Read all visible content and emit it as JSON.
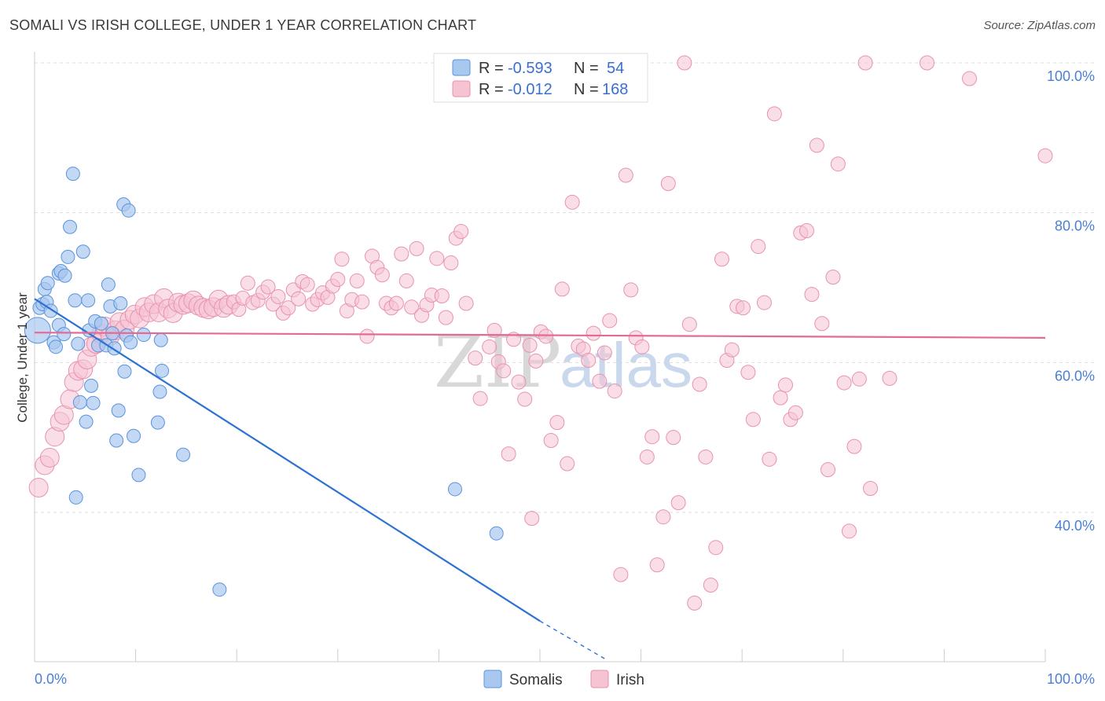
{
  "title": "SOMALI VS IRISH COLLEGE, UNDER 1 YEAR CORRELATION CHART",
  "source": "Source: ZipAtlas.com",
  "watermark": {
    "zip": "ZIP",
    "atlas": "atlas"
  },
  "colors": {
    "somali_fill": "#a9c8f0",
    "somali_stroke": "#5b93db",
    "somali_line": "#2d72d2",
    "irish_fill": "#f6c3d3",
    "irish_stroke": "#e892ae",
    "irish_line": "#e26a95",
    "grid": "#dddddd",
    "tick_text": "#4a7fd4"
  },
  "legend": {
    "rows": [
      {
        "r_label": "R = ",
        "r_value": "-0.593",
        "n_label": "N = ",
        "n_value": "54"
      },
      {
        "r_label": "R = ",
        "r_value": "-0.012",
        "n_label": "N = ",
        "n_value": "168"
      }
    ]
  },
  "bottom_legend": {
    "somali": "Somalis",
    "irish": "Irish"
  },
  "chart_data": {
    "type": "scatter",
    "title": "SOMALI VS IRISH COLLEGE, UNDER 1 YEAR CORRELATION CHART",
    "xlabel": "",
    "ylabel": "College, Under 1 year",
    "xlim": [
      0,
      100
    ],
    "ylim": [
      20,
      102
    ],
    "x_tick_labels": [
      {
        "value": 0,
        "label": "0.0%"
      },
      {
        "value": 100,
        "label": "100.0%"
      }
    ],
    "y_tick_labels": [
      {
        "value": 100,
        "label": "100.0%"
      },
      {
        "value": 80,
        "label": "80.0%"
      },
      {
        "value": 60,
        "label": "60.0%"
      },
      {
        "value": 40,
        "label": "40.0%"
      }
    ],
    "x_minor_ticks": [
      10,
      20,
      30,
      40,
      50,
      60,
      70,
      80,
      90,
      100
    ],
    "series": [
      {
        "name": "Somalis",
        "trend": {
          "x0": 0,
          "y0": 68.5,
          "x1": 50,
          "y1": 25.5,
          "dash_to_x": 56.5,
          "dash_to_y": 20.4
        },
        "points": [
          [
            0.3,
            64.3
          ],
          [
            0.5,
            67.3
          ],
          [
            0.8,
            67.8
          ],
          [
            1.0,
            69.8
          ],
          [
            1.2,
            68.1
          ],
          [
            1.3,
            70.6
          ],
          [
            1.6,
            66.9
          ],
          [
            1.9,
            62.7
          ],
          [
            2.1,
            62.1
          ],
          [
            2.4,
            65.0
          ],
          [
            2.4,
            71.9
          ],
          [
            2.6,
            72.2
          ],
          [
            2.9,
            63.8
          ],
          [
            3.0,
            71.6
          ],
          [
            3.3,
            74.1
          ],
          [
            3.5,
            78.1
          ],
          [
            3.8,
            85.2
          ],
          [
            4.0,
            68.3
          ],
          [
            4.1,
            42.0
          ],
          [
            4.3,
            62.5
          ],
          [
            4.5,
            54.7
          ],
          [
            4.8,
            74.8
          ],
          [
            5.1,
            52.1
          ],
          [
            5.3,
            68.3
          ],
          [
            5.4,
            64.3
          ],
          [
            5.6,
            56.9
          ],
          [
            5.8,
            54.6
          ],
          [
            6.0,
            65.5
          ],
          [
            6.3,
            62.3
          ],
          [
            6.6,
            65.2
          ],
          [
            7.1,
            62.3
          ],
          [
            7.3,
            70.4
          ],
          [
            7.5,
            67.5
          ],
          [
            7.7,
            63.9
          ],
          [
            7.9,
            61.9
          ],
          [
            8.1,
            49.6
          ],
          [
            8.3,
            53.6
          ],
          [
            8.5,
            67.9
          ],
          [
            8.8,
            81.1
          ],
          [
            8.9,
            58.8
          ],
          [
            9.1,
            63.6
          ],
          [
            9.3,
            80.3
          ],
          [
            9.5,
            62.7
          ],
          [
            9.8,
            50.2
          ],
          [
            10.3,
            45.0
          ],
          [
            10.8,
            63.7
          ],
          [
            12.2,
            52.0
          ],
          [
            12.4,
            56.1
          ],
          [
            12.6,
            58.9
          ],
          [
            14.7,
            47.7
          ],
          [
            18.3,
            29.7
          ],
          [
            41.6,
            43.1
          ],
          [
            45.7,
            37.2
          ],
          [
            12.5,
            63.0
          ]
        ],
        "sizes": [
          30,
          14,
          14,
          14,
          14,
          14,
          14,
          14,
          14,
          14,
          14,
          14,
          14,
          14,
          14,
          14,
          14,
          14,
          14,
          14,
          14,
          14,
          14,
          14,
          14,
          14,
          14,
          14,
          14,
          14,
          14,
          14,
          14,
          14,
          14,
          14,
          14,
          14,
          14,
          14,
          14,
          14,
          14,
          14,
          14,
          14,
          14,
          14,
          14,
          14,
          14,
          14,
          14,
          14
        ]
      },
      {
        "name": "Irish",
        "trend": {
          "x0": 0,
          "y0": 64.0,
          "x1": 100,
          "y1": 63.3
        },
        "points": [
          [
            0.4,
            43.3
          ],
          [
            1.0,
            46.3
          ],
          [
            1.5,
            47.3
          ],
          [
            2.0,
            50.1
          ],
          [
            2.5,
            52.1
          ],
          [
            2.9,
            53.0
          ],
          [
            3.5,
            55.1
          ],
          [
            3.9,
            57.4
          ],
          [
            4.3,
            58.9
          ],
          [
            4.8,
            59.1
          ],
          [
            5.2,
            60.4
          ],
          [
            5.6,
            62.1
          ],
          [
            6.1,
            62.5
          ],
          [
            6.6,
            63.8
          ],
          [
            7.0,
            64.8
          ],
          [
            7.5,
            63.6
          ],
          [
            8.0,
            64.3
          ],
          [
            8.4,
            65.4
          ],
          [
            8.9,
            64.4
          ],
          [
            9.4,
            65.7
          ],
          [
            9.9,
            66.4
          ],
          [
            10.4,
            65.9
          ],
          [
            10.9,
            67.4
          ],
          [
            11.3,
            66.7
          ],
          [
            11.8,
            67.8
          ],
          [
            12.3,
            66.7
          ],
          [
            12.8,
            68.6
          ],
          [
            13.2,
            67.2
          ],
          [
            13.7,
            66.6
          ],
          [
            14.2,
            68.0
          ],
          [
            14.7,
            67.7
          ],
          [
            15.2,
            67.9
          ],
          [
            15.7,
            68.3
          ],
          [
            16.2,
            67.6
          ],
          [
            16.7,
            67.3
          ],
          [
            17.2,
            67.1
          ],
          [
            17.7,
            67.4
          ],
          [
            18.2,
            68.4
          ],
          [
            18.7,
            67.3
          ],
          [
            19.2,
            67.7
          ],
          [
            19.7,
            68.1
          ],
          [
            20.2,
            67.1
          ],
          [
            20.6,
            68.6
          ],
          [
            21.1,
            70.6
          ],
          [
            21.6,
            68.0
          ],
          [
            22.1,
            68.3
          ],
          [
            22.6,
            69.4
          ],
          [
            23.1,
            70.1
          ],
          [
            23.6,
            67.8
          ],
          [
            24.1,
            68.8
          ],
          [
            24.6,
            66.6
          ],
          [
            25.1,
            67.3
          ],
          [
            25.6,
            69.7
          ],
          [
            26.1,
            68.5
          ],
          [
            26.5,
            70.8
          ],
          [
            27.0,
            70.4
          ],
          [
            27.5,
            67.8
          ],
          [
            28.0,
            68.4
          ],
          [
            28.5,
            69.3
          ],
          [
            29.0,
            68.7
          ],
          [
            29.5,
            70.2
          ],
          [
            30.0,
            71.1
          ],
          [
            30.4,
            73.8
          ],
          [
            30.9,
            66.9
          ],
          [
            31.4,
            68.4
          ],
          [
            31.9,
            70.9
          ],
          [
            32.4,
            68.1
          ],
          [
            32.9,
            63.5
          ],
          [
            33.4,
            74.2
          ],
          [
            33.9,
            72.7
          ],
          [
            34.4,
            71.7
          ],
          [
            34.8,
            67.9
          ],
          [
            35.3,
            67.3
          ],
          [
            35.8,
            67.9
          ],
          [
            36.3,
            74.5
          ],
          [
            36.8,
            70.9
          ],
          [
            37.3,
            67.4
          ],
          [
            37.8,
            75.2
          ],
          [
            38.3,
            66.3
          ],
          [
            38.8,
            67.7
          ],
          [
            39.3,
            69.0
          ],
          [
            39.8,
            73.9
          ],
          [
            40.3,
            68.9
          ],
          [
            40.7,
            66.0
          ],
          [
            41.2,
            73.3
          ],
          [
            41.7,
            76.6
          ],
          [
            42.2,
            77.5
          ],
          [
            42.7,
            67.9
          ],
          [
            43.6,
            60.6
          ],
          [
            44.1,
            55.2
          ],
          [
            45.0,
            62.1
          ],
          [
            45.5,
            64.3
          ],
          [
            45.9,
            60.1
          ],
          [
            46.4,
            58.9
          ],
          [
            46.9,
            47.8
          ],
          [
            47.4,
            63.1
          ],
          [
            47.9,
            57.4
          ],
          [
            48.5,
            55.1
          ],
          [
            49.0,
            62.3
          ],
          [
            49.6,
            60.2
          ],
          [
            50.1,
            64.1
          ],
          [
            50.6,
            63.5
          ],
          [
            51.1,
            49.6
          ],
          [
            51.7,
            52.0
          ],
          [
            52.2,
            69.8
          ],
          [
            52.7,
            46.5
          ],
          [
            53.2,
            81.4
          ],
          [
            53.8,
            62.2
          ],
          [
            54.3,
            61.8
          ],
          [
            54.8,
            60.3
          ],
          [
            55.3,
            63.9
          ],
          [
            55.9,
            57.5
          ],
          [
            56.4,
            61.3
          ],
          [
            56.9,
            65.6
          ],
          [
            57.4,
            56.2
          ],
          [
            58.0,
            31.7
          ],
          [
            58.5,
            85.0
          ],
          [
            59.0,
            69.7
          ],
          [
            59.5,
            63.3
          ],
          [
            60.1,
            62.1
          ],
          [
            60.6,
            47.4
          ],
          [
            61.1,
            50.1
          ],
          [
            61.6,
            33.0
          ],
          [
            62.2,
            39.4
          ],
          [
            62.7,
            83.9
          ],
          [
            63.2,
            50.0
          ],
          [
            63.7,
            41.3
          ],
          [
            64.3,
            100.0
          ],
          [
            64.8,
            65.1
          ],
          [
            65.3,
            27.9
          ],
          [
            65.8,
            57.1
          ],
          [
            66.4,
            47.4
          ],
          [
            66.9,
            30.3
          ],
          [
            67.4,
            35.3
          ],
          [
            68.0,
            73.8
          ],
          [
            68.5,
            60.3
          ],
          [
            69.0,
            61.7
          ],
          [
            69.5,
            67.5
          ],
          [
            70.1,
            67.3
          ],
          [
            70.6,
            58.7
          ],
          [
            71.1,
            52.4
          ],
          [
            71.6,
            75.5
          ],
          [
            72.2,
            68.0
          ],
          [
            72.7,
            47.1
          ],
          [
            73.2,
            93.2
          ],
          [
            73.8,
            55.3
          ],
          [
            74.3,
            57.0
          ],
          [
            74.8,
            52.4
          ],
          [
            75.3,
            53.3
          ],
          [
            75.8,
            77.3
          ],
          [
            76.4,
            77.6
          ],
          [
            76.9,
            69.1
          ],
          [
            77.4,
            89.0
          ],
          [
            77.9,
            65.2
          ],
          [
            78.5,
            45.7
          ],
          [
            79.0,
            71.4
          ],
          [
            79.5,
            86.5
          ],
          [
            80.1,
            57.3
          ],
          [
            80.6,
            37.5
          ],
          [
            81.1,
            48.8
          ],
          [
            81.6,
            57.8
          ],
          [
            82.2,
            100.0
          ],
          [
            82.7,
            43.2
          ],
          [
            84.6,
            57.9
          ],
          [
            88.3,
            100.0
          ],
          [
            92.5,
            97.9
          ],
          [
            100.0,
            87.6
          ],
          [
            49.2,
            39.2
          ]
        ],
        "sizes": [
          20,
          20,
          20,
          20,
          20,
          20,
          20,
          20,
          20,
          20,
          20,
          20,
          20,
          20,
          20,
          20,
          20,
          20,
          20,
          20,
          20,
          20,
          20,
          20,
          20,
          20,
          20,
          20,
          20,
          20,
          20,
          20,
          20,
          20,
          20,
          20,
          20,
          20,
          20,
          20,
          14,
          14,
          14,
          14,
          14,
          14,
          14,
          14,
          14,
          14,
          14,
          14,
          14,
          14,
          14,
          14,
          14,
          14,
          14,
          14,
          14,
          14,
          14,
          14,
          14,
          14,
          14,
          14,
          14,
          14,
          14,
          14,
          14,
          14,
          14,
          14,
          14,
          14,
          14,
          14,
          14,
          14,
          14,
          14,
          14,
          14,
          14,
          14,
          14,
          14,
          14,
          14,
          14,
          14,
          14,
          14,
          14,
          14,
          14,
          14,
          14,
          14,
          14,
          14,
          14,
          14,
          14,
          14,
          14,
          14,
          14,
          14,
          14,
          14,
          14,
          14,
          14,
          14,
          14,
          14,
          14,
          14,
          14,
          14,
          14,
          14,
          14,
          14,
          14,
          14,
          14,
          14,
          14,
          14,
          14,
          14,
          14,
          14,
          14,
          14,
          14,
          14,
          14,
          14,
          14,
          14,
          14,
          14,
          14,
          14,
          14,
          14,
          14,
          14,
          14,
          14,
          14,
          14,
          14,
          14,
          14,
          14,
          14,
          14,
          14,
          14,
          14,
          14
        ]
      }
    ]
  }
}
